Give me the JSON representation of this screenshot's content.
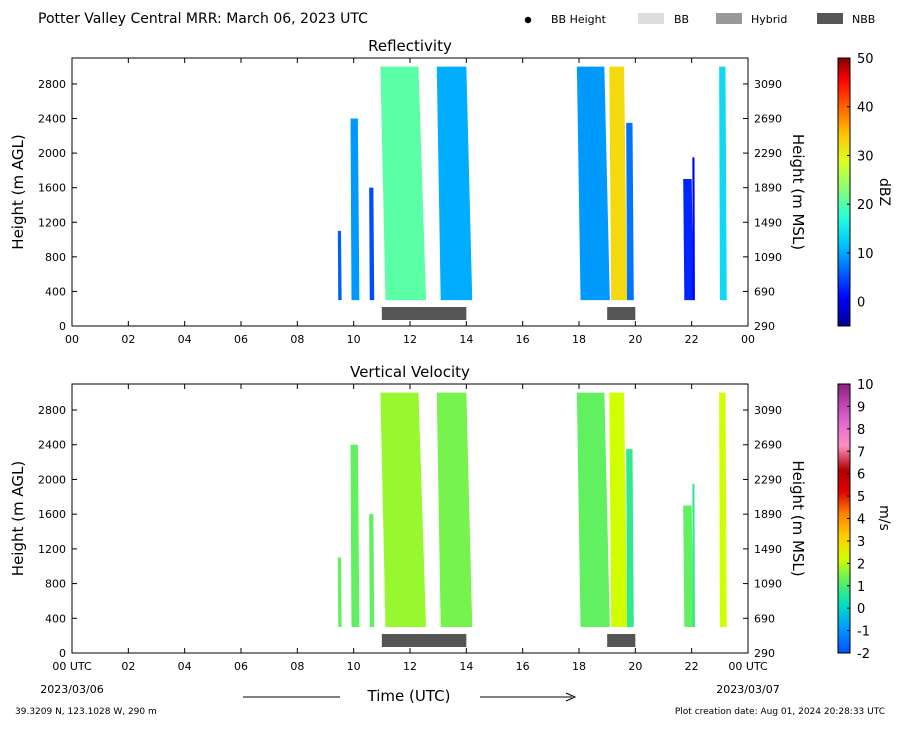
{
  "header": {
    "title": "Potter Valley Central MRR:  March 06, 2023 UTC",
    "legend": [
      {
        "label": "BB Height",
        "kind": "dot",
        "color": "#000000"
      },
      {
        "label": "BB",
        "kind": "box",
        "color": "#dddddd"
      },
      {
        "label": "Hybrid",
        "kind": "box",
        "color": "#999999"
      },
      {
        "label": "NBB",
        "kind": "box",
        "color": "#555555"
      }
    ]
  },
  "chart_data": [
    {
      "type": "heatmap",
      "title": "Reflectivity",
      "ylabel": "Height (m AGL)",
      "ylabel_right": "Height (m MSL)",
      "xlim": [
        0,
        24
      ],
      "ylim": [
        0,
        3100
      ],
      "x_ticks": [
        "00",
        "02",
        "04",
        "06",
        "08",
        "10",
        "12",
        "14",
        "16",
        "18",
        "20",
        "22",
        "00"
      ],
      "y_ticks": [
        "0",
        "400",
        "800",
        "1200",
        "1600",
        "2000",
        "2400",
        "2800"
      ],
      "y_ticks_right": [
        "290",
        "690",
        "1090",
        "1490",
        "1890",
        "2290",
        "2690",
        "3090"
      ],
      "colorbar": {
        "label": "dBZ",
        "min": -5,
        "max": 50,
        "ticks": [
          "0",
          "10",
          "20",
          "30",
          "40",
          "50"
        ]
      },
      "echoes": [
        {
          "x0": 9.4,
          "x1": 9.55,
          "y0": 300,
          "y1": 1100,
          "value": 5
        },
        {
          "x0": 9.8,
          "x1": 10.15,
          "y0": 300,
          "y1": 2400,
          "value": 8
        },
        {
          "x0": 10.5,
          "x1": 10.7,
          "y0": 300,
          "y1": 1600,
          "value": 4
        },
        {
          "x0": 10.5,
          "x1": 12.3,
          "y0": 300,
          "y1": 3000,
          "value": 18
        },
        {
          "x0": 12.6,
          "x1": 14.0,
          "y0": 300,
          "y1": 3000,
          "value": 9
        },
        {
          "x0": 17.6,
          "x1": 18.9,
          "y0": 300,
          "y1": 3000,
          "value": 8
        },
        {
          "x0": 18.9,
          "x1": 19.6,
          "y0": 300,
          "y1": 3000,
          "value": 28
        },
        {
          "x0": 19.6,
          "x1": 19.9,
          "y0": 300,
          "y1": 2350,
          "value": 6
        },
        {
          "x0": 21.6,
          "x1": 22.0,
          "y0": 300,
          "y1": 1700,
          "value": 2
        },
        {
          "x0": 22.0,
          "x1": 22.1,
          "y0": 300,
          "y1": 1950,
          "value": 0
        },
        {
          "x0": 22.9,
          "x1": 23.2,
          "y0": 300,
          "y1": 3000,
          "value": 12
        }
      ],
      "bands": [
        {
          "type": "NBB",
          "x0": 11.0,
          "x1": 14.0
        },
        {
          "type": "NBB",
          "x0": 19.0,
          "x1": 20.0
        }
      ]
    },
    {
      "type": "heatmap",
      "title": "Vertical Velocity",
      "ylabel": "Height (m AGL)",
      "ylabel_right": "Height (m MSL)",
      "xlabel": "Time (UTC)",
      "xlim": [
        0,
        24
      ],
      "ylim": [
        0,
        3100
      ],
      "x_ticks": [
        "00 UTC",
        "02",
        "04",
        "06",
        "08",
        "10",
        "12",
        "14",
        "16",
        "18",
        "20",
        "22",
        "00 UTC"
      ],
      "x_dates": [
        "2023/03/06",
        "2023/03/07"
      ],
      "y_ticks": [
        "0",
        "400",
        "800",
        "1200",
        "1600",
        "2000",
        "2400",
        "2800"
      ],
      "y_ticks_right": [
        "290",
        "690",
        "1090",
        "1490",
        "1890",
        "2290",
        "2690",
        "3090"
      ],
      "colorbar": {
        "label": "m/s",
        "min": -2,
        "max": 10,
        "ticks": [
          "-2",
          "-1",
          "0",
          "1",
          "2",
          "3",
          "4",
          "5",
          "6",
          "7",
          "8",
          "9",
          "10"
        ]
      },
      "echoes": [
        {
          "x0": 9.4,
          "x1": 9.55,
          "y0": 300,
          "y1": 1100,
          "value": 1
        },
        {
          "x0": 9.8,
          "x1": 10.15,
          "y0": 300,
          "y1": 2400,
          "value": 1
        },
        {
          "x0": 10.5,
          "x1": 10.7,
          "y0": 300,
          "y1": 1600,
          "value": 1
        },
        {
          "x0": 10.5,
          "x1": 12.3,
          "y0": 300,
          "y1": 3000,
          "value": 1.5
        },
        {
          "x0": 12.6,
          "x1": 14.0,
          "y0": 300,
          "y1": 3000,
          "value": 1.2
        },
        {
          "x0": 17.6,
          "x1": 18.9,
          "y0": 300,
          "y1": 3000,
          "value": 1
        },
        {
          "x0": 18.9,
          "x1": 19.6,
          "y0": 300,
          "y1": 3000,
          "value": 2
        },
        {
          "x0": 19.6,
          "x1": 19.9,
          "y0": 300,
          "y1": 2350,
          "value": 0.5
        },
        {
          "x0": 21.6,
          "x1": 22.0,
          "y0": 300,
          "y1": 1700,
          "value": 1
        },
        {
          "x0": 22.0,
          "x1": 22.1,
          "y0": 300,
          "y1": 1950,
          "value": 0.5
        },
        {
          "x0": 22.9,
          "x1": 23.2,
          "y0": 300,
          "y1": 3000,
          "value": 2
        }
      ],
      "bands": [
        {
          "type": "NBB",
          "x0": 11.0,
          "x1": 14.0
        },
        {
          "type": "NBB",
          "x0": 19.0,
          "x1": 20.0
        }
      ]
    }
  ],
  "footer": {
    "location": "39.3209 N, 123.1028 W, 290 m",
    "creation": "Plot creation date: Aug 01, 2024 20:28:33 UTC"
  }
}
